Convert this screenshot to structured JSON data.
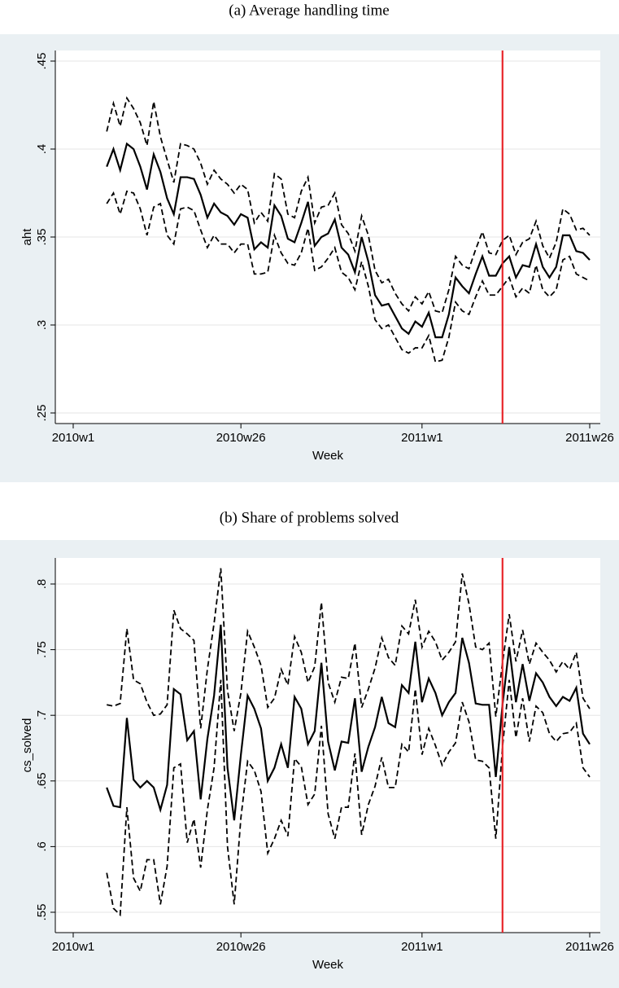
{
  "chart_data": [
    {
      "type": "line",
      "title": "(a) Average handling time",
      "xlabel": "Week",
      "ylabel": "aht",
      "x": [
        "2010w6",
        "2010w7",
        "2010w8",
        "2010w9",
        "2010w10",
        "2010w11",
        "2010w12",
        "2010w13",
        "2010w14",
        "2010w15",
        "2010w16",
        "2010w17",
        "2010w18",
        "2010w19",
        "2010w20",
        "2010w21",
        "2010w22",
        "2010w23",
        "2010w24",
        "2010w25",
        "2010w26",
        "2010w27",
        "2010w28",
        "2010w29",
        "2010w30",
        "2010w31",
        "2010w32",
        "2010w33",
        "2010w34",
        "2010w35",
        "2010w36",
        "2010w37",
        "2010w38",
        "2010w39",
        "2010w40",
        "2010w41",
        "2010w42",
        "2010w43",
        "2010w44",
        "2010w45",
        "2010w46",
        "2010w47",
        "2010w48",
        "2010w49",
        "2010w50",
        "2010w51",
        "2010w52",
        "2011w1",
        "2011w2",
        "2011w3",
        "2011w4",
        "2011w5",
        "2011w6",
        "2011w7",
        "2011w8",
        "2011w9",
        "2011w10",
        "2011w11",
        "2011w12",
        "2011w13",
        "2011w14",
        "2011w15",
        "2011w16",
        "2011w17",
        "2011w18",
        "2011w19",
        "2011w20",
        "2011w21",
        "2011w22",
        "2011w23",
        "2011w24",
        "2011w25",
        "2011w26"
      ],
      "series": [
        {
          "color": "#000000",
          "style": "solid",
          "values": [
            0.39,
            0.4,
            0.388,
            0.403,
            0.4,
            0.39,
            0.377,
            0.397,
            0.387,
            0.372,
            0.363,
            0.384,
            0.384,
            0.383,
            0.374,
            0.361,
            0.369,
            0.364,
            0.362,
            0.357,
            0.363,
            0.361,
            0.343,
            0.347,
            0.344,
            0.368,
            0.362,
            0.349,
            0.347,
            0.358,
            0.37,
            0.345,
            0.35,
            0.352,
            0.36,
            0.344,
            0.34,
            0.33,
            0.35,
            0.336,
            0.317,
            0.311,
            0.312,
            0.305,
            0.298,
            0.295,
            0.302,
            0.299,
            0.307,
            0.293,
            0.293,
            0.306,
            0.327,
            0.322,
            0.318,
            0.329,
            0.339,
            0.328,
            0.328,
            0.335,
            0.339,
            0.327,
            0.334,
            0.333,
            0.346,
            0.333,
            0.327,
            0.333,
            0.351,
            0.351,
            0.342,
            0.341,
            0.337
          ]
        },
        {
          "color": "#000000",
          "style": "dashed",
          "values": [
            0.41,
            0.426,
            0.413,
            0.429,
            0.423,
            0.415,
            0.402,
            0.427,
            0.407,
            0.394,
            0.381,
            0.403,
            0.402,
            0.4,
            0.392,
            0.38,
            0.388,
            0.383,
            0.38,
            0.375,
            0.38,
            0.377,
            0.358,
            0.364,
            0.359,
            0.386,
            0.383,
            0.363,
            0.361,
            0.376,
            0.384,
            0.358,
            0.367,
            0.368,
            0.375,
            0.357,
            0.352,
            0.342,
            0.362,
            0.351,
            0.331,
            0.324,
            0.326,
            0.318,
            0.312,
            0.308,
            0.316,
            0.312,
            0.319,
            0.308,
            0.307,
            0.32,
            0.339,
            0.334,
            0.332,
            0.343,
            0.353,
            0.341,
            0.34,
            0.348,
            0.351,
            0.34,
            0.347,
            0.349,
            0.359,
            0.345,
            0.338,
            0.347,
            0.366,
            0.363,
            0.354,
            0.355,
            0.351
          ]
        },
        {
          "color": "#000000",
          "style": "dashed",
          "values": [
            0.369,
            0.375,
            0.363,
            0.376,
            0.375,
            0.366,
            0.351,
            0.367,
            0.369,
            0.351,
            0.346,
            0.366,
            0.367,
            0.365,
            0.354,
            0.344,
            0.351,
            0.346,
            0.346,
            0.341,
            0.346,
            0.346,
            0.329,
            0.329,
            0.33,
            0.351,
            0.341,
            0.335,
            0.334,
            0.341,
            0.355,
            0.331,
            0.333,
            0.338,
            0.344,
            0.33,
            0.327,
            0.32,
            0.336,
            0.322,
            0.303,
            0.298,
            0.3,
            0.293,
            0.286,
            0.284,
            0.287,
            0.287,
            0.294,
            0.279,
            0.28,
            0.293,
            0.313,
            0.308,
            0.306,
            0.316,
            0.325,
            0.317,
            0.317,
            0.322,
            0.327,
            0.316,
            0.321,
            0.318,
            0.334,
            0.32,
            0.316,
            0.32,
            0.337,
            0.339,
            0.329,
            0.327,
            0.325
          ]
        }
      ],
      "ylim": [
        0.25,
        0.45
      ],
      "yticks": [
        {
          "value": 0.25,
          "label": ".25"
        },
        {
          "value": 0.3,
          "label": ".3"
        },
        {
          "value": 0.35,
          "label": ".35"
        },
        {
          "value": 0.4,
          "label": ".4"
        },
        {
          "value": 0.45,
          "label": ".45"
        }
      ],
      "xticks": [
        "2010w1",
        "2010w26",
        "2011w1",
        "2011w26"
      ],
      "grid": true,
      "vline": {
        "x": "2011w13",
        "color": "#e8262b"
      }
    },
    {
      "type": "line",
      "title": "(b) Share of problems solved",
      "xlabel": "Week",
      "ylabel": "cs_solved",
      "x": [
        "2010w6",
        "2010w7",
        "2010w8",
        "2010w9",
        "2010w10",
        "2010w11",
        "2010w12",
        "2010w13",
        "2010w14",
        "2010w15",
        "2010w16",
        "2010w17",
        "2010w18",
        "2010w19",
        "2010w20",
        "2010w21",
        "2010w22",
        "2010w23",
        "2010w24",
        "2010w25",
        "2010w26",
        "2010w27",
        "2010w28",
        "2010w29",
        "2010w30",
        "2010w31",
        "2010w32",
        "2010w33",
        "2010w34",
        "2010w35",
        "2010w36",
        "2010w37",
        "2010w38",
        "2010w39",
        "2010w40",
        "2010w41",
        "2010w42",
        "2010w43",
        "2010w44",
        "2010w45",
        "2010w46",
        "2010w47",
        "2010w48",
        "2010w49",
        "2010w50",
        "2010w51",
        "2010w52",
        "2011w1",
        "2011w2",
        "2011w3",
        "2011w4",
        "2011w5",
        "2011w6",
        "2011w7",
        "2011w8",
        "2011w9",
        "2011w10",
        "2011w11",
        "2011w12",
        "2011w13",
        "2011w14",
        "2011w15",
        "2011w16",
        "2011w17",
        "2011w18",
        "2011w19",
        "2011w20",
        "2011w21",
        "2011w22",
        "2011w23",
        "2011w24",
        "2011w25",
        "2011w26"
      ],
      "series": [
        {
          "color": "#000000",
          "style": "solid",
          "values": [
            0.645,
            0.631,
            0.63,
            0.698,
            0.651,
            0.645,
            0.65,
            0.645,
            0.628,
            0.647,
            0.72,
            0.716,
            0.681,
            0.688,
            0.636,
            0.682,
            0.715,
            0.769,
            0.66,
            0.62,
            0.67,
            0.715,
            0.705,
            0.69,
            0.65,
            0.66,
            0.678,
            0.66,
            0.714,
            0.705,
            0.678,
            0.688,
            0.74,
            0.68,
            0.658,
            0.68,
            0.679,
            0.713,
            0.657,
            0.676,
            0.691,
            0.714,
            0.694,
            0.691,
            0.723,
            0.717,
            0.756,
            0.71,
            0.728,
            0.717,
            0.7,
            0.71,
            0.717,
            0.759,
            0.74,
            0.709,
            0.708,
            0.708,
            0.653,
            0.708,
            0.752,
            0.71,
            0.739,
            0.711,
            0.732,
            0.725,
            0.714,
            0.707,
            0.714,
            0.711,
            0.721,
            0.686,
            0.678
          ]
        },
        {
          "color": "#000000",
          "style": "dashed",
          "values": [
            0.708,
            0.707,
            0.709,
            0.766,
            0.727,
            0.724,
            0.71,
            0.7,
            0.701,
            0.708,
            0.78,
            0.766,
            0.762,
            0.757,
            0.69,
            0.735,
            0.77,
            0.812,
            0.719,
            0.688,
            0.717,
            0.764,
            0.752,
            0.738,
            0.706,
            0.713,
            0.735,
            0.723,
            0.76,
            0.748,
            0.725,
            0.737,
            0.786,
            0.725,
            0.71,
            0.729,
            0.728,
            0.755,
            0.706,
            0.72,
            0.736,
            0.759,
            0.744,
            0.738,
            0.768,
            0.762,
            0.788,
            0.752,
            0.764,
            0.756,
            0.742,
            0.748,
            0.756,
            0.808,
            0.785,
            0.752,
            0.75,
            0.755,
            0.699,
            0.74,
            0.777,
            0.741,
            0.765,
            0.739,
            0.755,
            0.748,
            0.742,
            0.733,
            0.741,
            0.735,
            0.748,
            0.713,
            0.705
          ]
        },
        {
          "color": "#000000",
          "style": "dashed",
          "values": [
            0.58,
            0.553,
            0.548,
            0.63,
            0.576,
            0.566,
            0.59,
            0.59,
            0.556,
            0.585,
            0.66,
            0.663,
            0.603,
            0.621,
            0.584,
            0.628,
            0.66,
            0.727,
            0.6,
            0.556,
            0.622,
            0.665,
            0.658,
            0.642,
            0.595,
            0.606,
            0.62,
            0.608,
            0.667,
            0.661,
            0.632,
            0.64,
            0.692,
            0.625,
            0.606,
            0.63,
            0.63,
            0.671,
            0.609,
            0.632,
            0.646,
            0.668,
            0.645,
            0.645,
            0.678,
            0.672,
            0.72,
            0.67,
            0.69,
            0.677,
            0.662,
            0.672,
            0.679,
            0.71,
            0.695,
            0.666,
            0.665,
            0.66,
            0.606,
            0.676,
            0.727,
            0.683,
            0.713,
            0.68,
            0.707,
            0.702,
            0.686,
            0.68,
            0.686,
            0.687,
            0.694,
            0.66,
            0.653
          ]
        }
      ],
      "ylim": [
        0.55,
        0.8
      ],
      "yticks": [
        {
          "value": 0.55,
          "label": ".55"
        },
        {
          "value": 0.6,
          "label": ".6"
        },
        {
          "value": 0.65,
          "label": ".65"
        },
        {
          "value": 0.7,
          "label": ".7"
        },
        {
          "value": 0.75,
          "label": ".75"
        },
        {
          "value": 0.8,
          "label": ".8"
        }
      ],
      "xticks": [
        "2010w1",
        "2010w26",
        "2011w1",
        "2011w26"
      ],
      "grid": true,
      "vline": {
        "x": "2011w13",
        "color": "#e8262b"
      }
    }
  ]
}
